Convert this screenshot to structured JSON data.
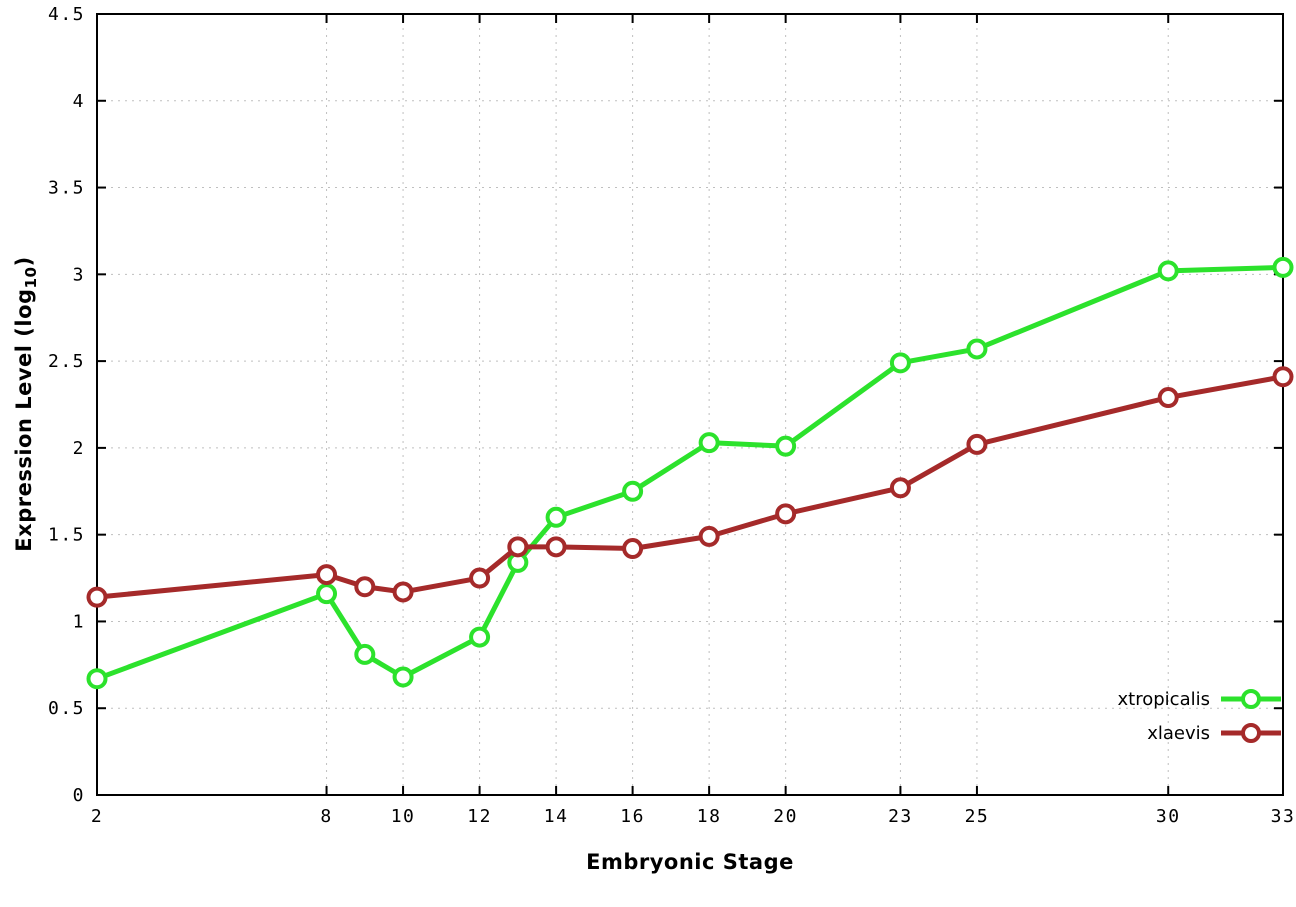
{
  "chart_data": {
    "type": "line",
    "title": "",
    "xlabel": "Embryonic Stage",
    "ylabel": {
      "prefix": "Expression Level (log",
      "sub": "10",
      "suffix": ")"
    },
    "xlim": [
      2,
      33
    ],
    "ylim": [
      0,
      4.5
    ],
    "xticks": [
      2,
      8,
      10,
      12,
      14,
      16,
      18,
      20,
      23,
      25,
      30,
      33
    ],
    "yticks": [
      0,
      0.5,
      1,
      1.5,
      2,
      2.5,
      3,
      3.5,
      4,
      4.5
    ],
    "grid": true,
    "legend_position": "bottom-right-inside",
    "x": [
      2,
      8,
      9,
      10,
      12,
      13,
      14,
      16,
      18,
      20,
      23,
      25,
      30,
      33
    ],
    "series": [
      {
        "name": "xtropicalis",
        "color": "#2ce22c",
        "values": [
          0.67,
          1.16,
          0.81,
          0.68,
          0.91,
          1.34,
          1.6,
          1.75,
          2.03,
          2.01,
          2.49,
          2.57,
          3.02,
          3.04
        ]
      },
      {
        "name": "xlaevis",
        "color": "#a52a2a",
        "values": [
          1.14,
          1.27,
          1.2,
          1.17,
          1.25,
          1.43,
          1.43,
          1.42,
          1.49,
          1.62,
          1.77,
          2.02,
          2.29,
          2.41
        ]
      }
    ]
  }
}
